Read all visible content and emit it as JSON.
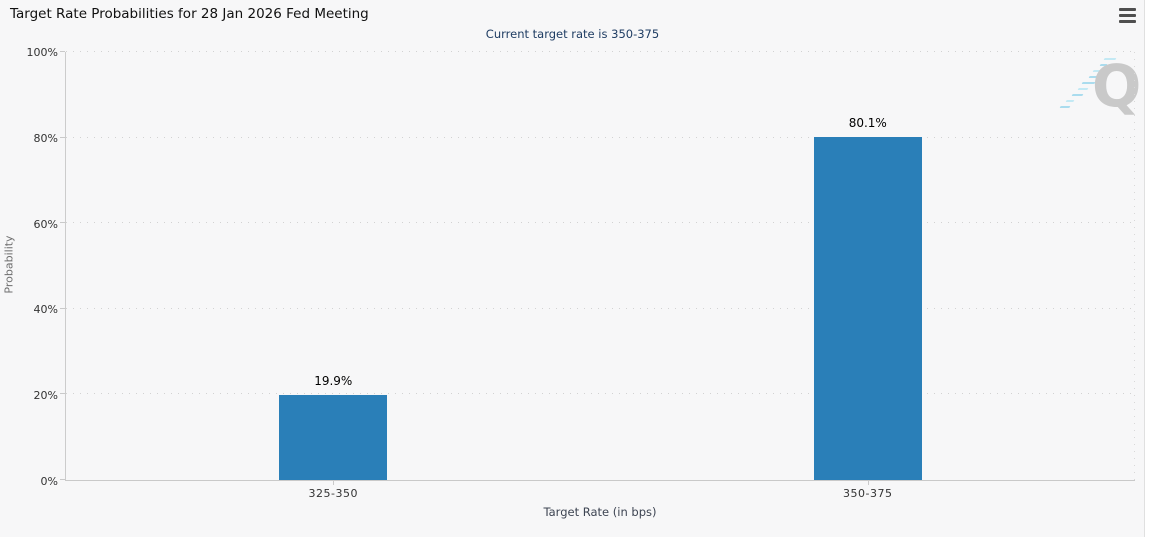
{
  "header": {
    "menu_icon": "hamburger-menu-icon"
  },
  "watermark_letter": "Q",
  "chart_data": {
    "type": "bar",
    "title": "Target Rate Probabilities for 28 Jan 2026 Fed Meeting",
    "subtitle": "Current target rate is 350-375",
    "categories": [
      "325-350",
      "350-375"
    ],
    "values": [
      19.9,
      80.1
    ],
    "bar_labels": [
      "19.9%",
      "80.1%"
    ],
    "xlabel": "Target Rate (in bps)",
    "ylabel": "Probability",
    "ylim": [
      0,
      100
    ],
    "yticks": [
      0,
      20,
      40,
      60,
      80,
      100
    ],
    "ytick_labels": [
      "0%",
      "20%",
      "40%",
      "60%",
      "80%",
      "100%"
    ],
    "grid": "horizontal-dotted",
    "legend": "none",
    "bar_color": "#2a7fb8"
  },
  "colors": {
    "bar": "#2a7fb8",
    "background": "#f7f7f8",
    "subtitle_text": "#1f3d63",
    "title_text": "#111111",
    "axis_line": "#c9c9c9",
    "gridline": "#d2d2d2",
    "tick_text": "#333333",
    "watermark": "#c9c9c9"
  }
}
